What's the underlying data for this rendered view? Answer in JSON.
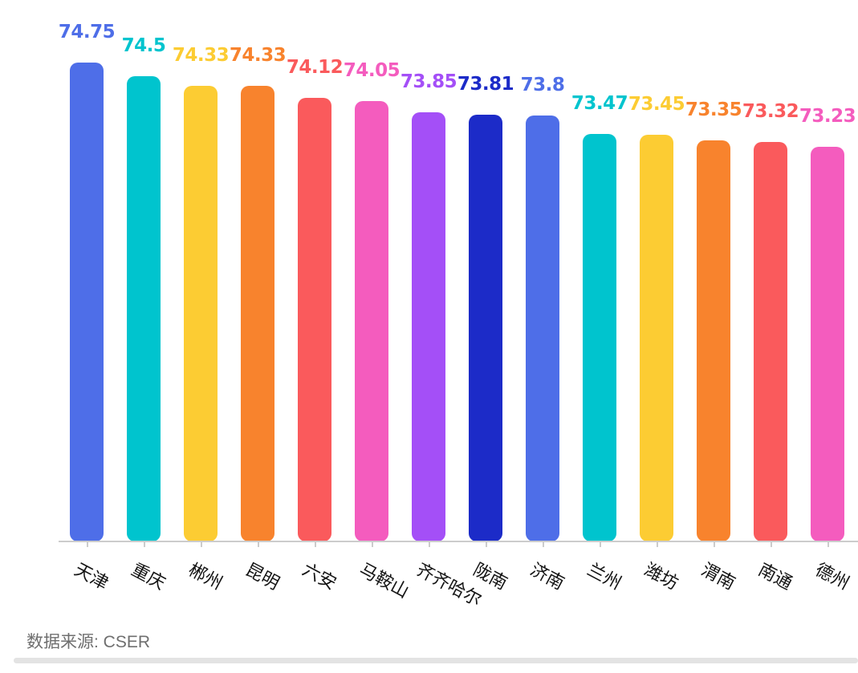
{
  "chart_data": {
    "type": "bar",
    "title": "",
    "xlabel": "",
    "ylabel": "",
    "categories": [
      "天津",
      "重庆",
      "郴州",
      "昆明",
      "六安",
      "马鞍山",
      "齐齐哈尔",
      "陇南",
      "济南",
      "兰州",
      "潍坊",
      "渭南",
      "南通",
      "德州"
    ],
    "values": [
      74.75,
      74.5,
      74.33,
      74.33,
      74.12,
      74.05,
      73.85,
      73.81,
      73.8,
      73.47,
      73.45,
      73.35,
      73.32,
      73.23
    ],
    "value_labels": [
      "74.75",
      "74.5",
      "74.33",
      "74.33",
      "74.12",
      "74.05",
      "73.85",
      "73.81",
      "73.8",
      "73.47",
      "73.45",
      "73.35",
      "73.32",
      "73.23"
    ],
    "bar_colors": [
      "#4E6EE8",
      "#00C4CE",
      "#FCCC33",
      "#F8832D",
      "#FA5A5C",
      "#F45CBE",
      "#A44FF7",
      "#1C2BC8",
      "#4E6EE8",
      "#00C4CE",
      "#FCCC33",
      "#F8832D",
      "#FA5A5C",
      "#F45CBE"
    ],
    "palette": [
      "#4E6EE8",
      "#00C4CE",
      "#FCCC33",
      "#F8832D",
      "#FA5A5C",
      "#F45CBE",
      "#A44FF7",
      "#1C2BC8"
    ],
    "ylim": [
      66.1,
      75.5
    ],
    "grid": false,
    "legend": "none",
    "x_labels_rotated": true
  },
  "footer": {
    "source_label": "数据来源: CSER"
  },
  "colors": {
    "background": "#ffffff",
    "axis": "#cccccc",
    "x_label_text": "#141414",
    "source_text": "#6f6f6f",
    "scrollbar": "#e3e3e3"
  }
}
